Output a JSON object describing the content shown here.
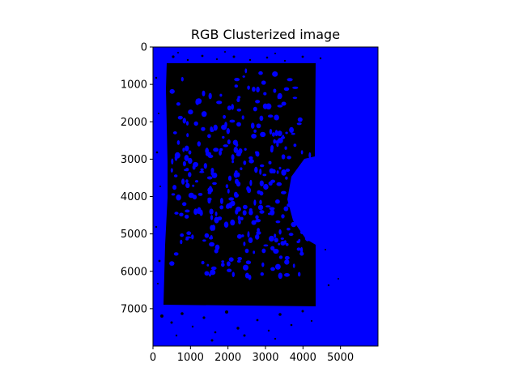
{
  "title": "RGB Clusterized image",
  "colors": {
    "background_cluster": "#0000ff",
    "foreground_cluster": "#000000"
  },
  "axes": {
    "xlim": [
      0,
      6000
    ],
    "ylim": [
      8000,
      0
    ],
    "y_inverted": true,
    "x_ticks": [
      {
        "value": 0,
        "label": "0"
      },
      {
        "value": 1000,
        "label": "1000"
      },
      {
        "value": 2000,
        "label": "2000"
      },
      {
        "value": 3000,
        "label": "3000"
      },
      {
        "value": 4000,
        "label": "4000"
      },
      {
        "value": 5000,
        "label": "5000"
      }
    ],
    "y_ticks": [
      {
        "value": 0,
        "label": "0"
      },
      {
        "value": 1000,
        "label": "1000"
      },
      {
        "value": 2000,
        "label": "2000"
      },
      {
        "value": 3000,
        "label": "3000"
      },
      {
        "value": 4000,
        "label": "4000"
      },
      {
        "value": 5000,
        "label": "5000"
      },
      {
        "value": 6000,
        "label": "6000"
      },
      {
        "value": 7000,
        "label": "7000"
      }
    ]
  }
}
